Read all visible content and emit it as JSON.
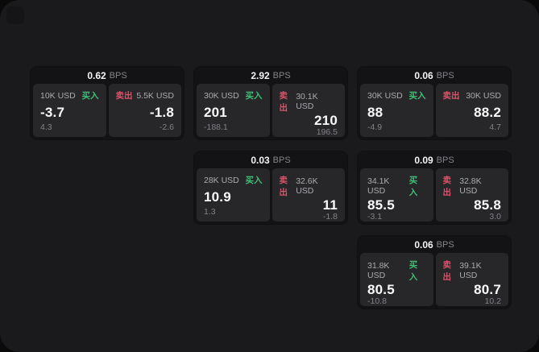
{
  "page": {
    "outer_bg": "#0a0a0a",
    "window_bg": "#1a1a1c",
    "card_bg": "#131315",
    "panel_bg": "#27272a",
    "buy_color": "#3fbf77",
    "sell_color": "#d9536a"
  },
  "labels": {
    "buy": "买入",
    "sell": "卖出",
    "bps_unit": "BPS"
  },
  "cards": [
    {
      "bps": "0.62",
      "buy": {
        "amount": "10K USD",
        "price": "-3.7",
        "change": "4.3"
      },
      "sell": {
        "amount": "5.5K USD",
        "price": "-1.8",
        "change": "-2.6"
      }
    },
    {
      "bps": "2.92",
      "buy": {
        "amount": "30K USD",
        "price": "201",
        "change": "-188.1"
      },
      "sell": {
        "amount": "30.1K USD",
        "price": "210",
        "change": "196.5"
      }
    },
    {
      "bps": "0.06",
      "buy": {
        "amount": "30K USD",
        "price": "88",
        "change": "-4.9"
      },
      "sell": {
        "amount": "30K USD",
        "price": "88.2",
        "change": "4.7"
      }
    },
    {
      "bps": "0.03",
      "buy": {
        "amount": "28K USD",
        "price": "10.9",
        "change": "1.3"
      },
      "sell": {
        "amount": "32.6K USD",
        "price": "11",
        "change": "-1.8"
      }
    },
    {
      "bps": "0.09",
      "buy": {
        "amount": "34.1K USD",
        "price": "85.5",
        "change": "-3.1"
      },
      "sell": {
        "amount": "32.8K USD",
        "price": "85.8",
        "change": "3.0"
      }
    },
    {
      "bps": "0.06",
      "buy": {
        "amount": "31.8K USD",
        "price": "80.5",
        "change": "-10.8"
      },
      "sell": {
        "amount": "39.1K USD",
        "price": "80.7",
        "change": "10.2"
      }
    }
  ]
}
